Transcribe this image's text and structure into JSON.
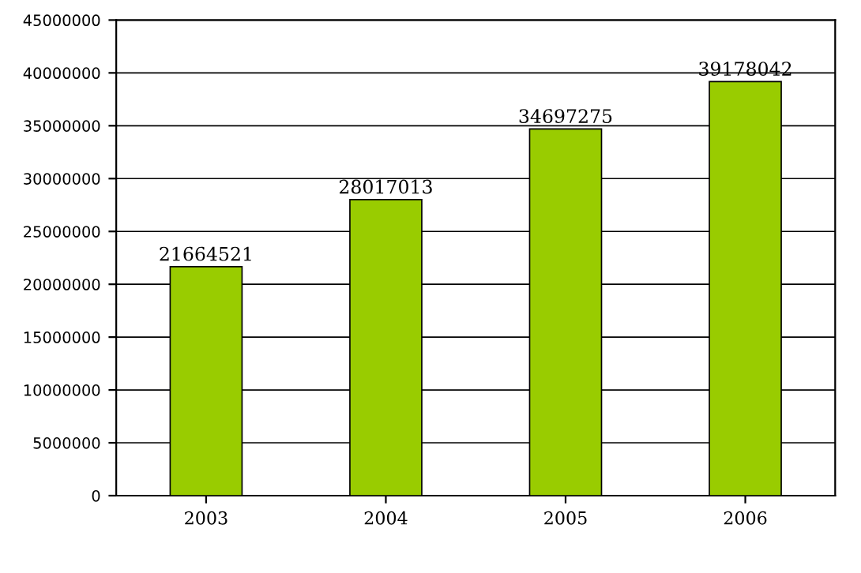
{
  "chart_data": {
    "type": "bar",
    "categories": [
      "2003",
      "2004",
      "2005",
      "2006"
    ],
    "values": [
      21664521,
      28017013,
      34697275,
      39178042
    ],
    "color": "#99cc00",
    "ylim": [
      0,
      45000000
    ],
    "yticks": [
      0,
      5000000,
      10000000,
      15000000,
      20000000,
      25000000,
      30000000,
      35000000,
      40000000,
      45000000
    ],
    "grid": "y",
    "data_labels": true
  }
}
